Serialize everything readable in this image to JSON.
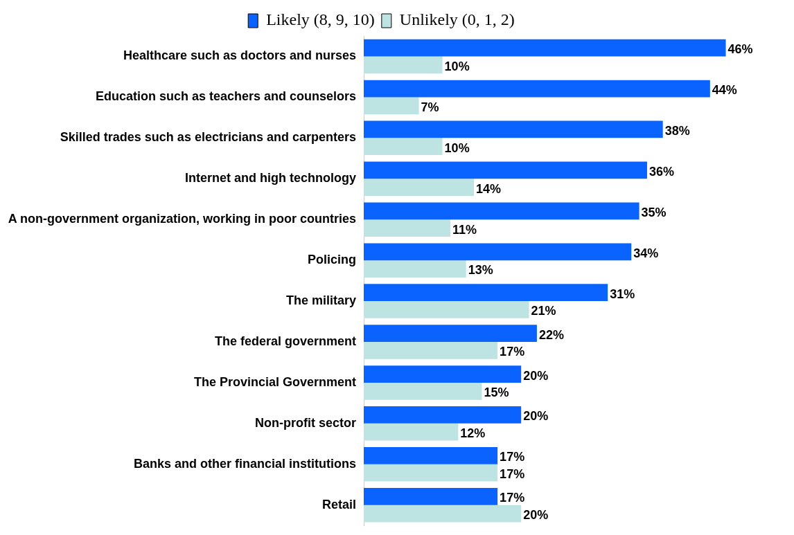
{
  "chart_data": {
    "type": "bar",
    "orientation": "horizontal",
    "legend": "top",
    "categories": [
      "Healthcare such as doctors and nurses",
      "Education such as teachers and counselors",
      "Skilled trades such as electricians and carpenters",
      "Internet and high technology",
      "A non-government organization, working in poor countries",
      "Policing",
      "The military",
      "The federal government",
      "The Provincial Government",
      "Non-profit sector",
      "Banks and other financial institutions",
      "Retail"
    ],
    "series": [
      {
        "name": "Likely (8, 9, 10)",
        "color": "#0a63ff",
        "values": [
          46,
          44,
          38,
          36,
          35,
          34,
          31,
          22,
          20,
          20,
          17,
          17
        ],
        "value_labels": [
          "46%",
          "44%",
          "38%",
          "36%",
          "35%",
          "34%",
          "31%",
          "22%",
          "20%",
          "20%",
          "17%",
          "17%"
        ]
      },
      {
        "name": "Unlikely (0, 1, 2)",
        "color": "#bde3e3",
        "values": [
          10,
          7,
          10,
          14,
          11,
          13,
          21,
          17,
          15,
          12,
          17,
          20
        ],
        "value_labels": [
          "10%",
          "7%",
          "10%",
          "14%",
          "11%",
          "13%",
          "21%",
          "17%",
          "15%",
          "12%",
          "17%",
          "20%"
        ]
      }
    ]
  }
}
